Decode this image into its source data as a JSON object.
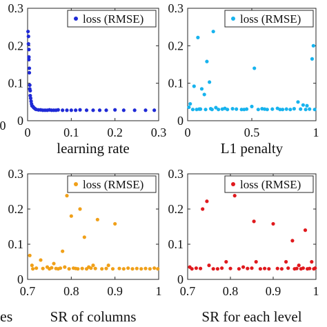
{
  "chart_data": [
    {
      "type": "scatter",
      "xlabel": "learning rate",
      "ylabel": "",
      "xlim": [
        0,
        0.3
      ],
      "ylim": [
        0,
        0.3
      ],
      "xticks": [
        0,
        0.1,
        0.2,
        0.3
      ],
      "yticks": [
        0,
        0.1,
        0.2,
        0.3
      ],
      "xtick_labels": [
        "0",
        "0.1",
        "0.2",
        "0.3"
      ],
      "ytick_labels": [
        "0",
        "0.1",
        "0.2",
        "0.3"
      ],
      "legend_position": "top-right",
      "series": [
        {
          "name": "loss (RMSE)",
          "color": "#1f2ad6",
          "x": [
            0.001,
            0.002,
            0.002,
            0.003,
            0.003,
            0.003,
            0.004,
            0.004,
            0.005,
            0.005,
            0.006,
            0.006,
            0.007,
            0.008,
            0.009,
            0.01,
            0.012,
            0.014,
            0.016,
            0.018,
            0.02,
            0.025,
            0.03,
            0.035,
            0.04,
            0.045,
            0.05,
            0.055,
            0.06,
            0.065,
            0.07,
            0.08,
            0.09,
            0.1,
            0.11,
            0.12,
            0.135,
            0.15,
            0.165,
            0.18,
            0.2,
            0.22,
            0.245,
            0.27,
            0.29
          ],
          "y": [
            0.238,
            0.225,
            0.205,
            0.19,
            0.17,
            0.163,
            0.14,
            0.128,
            0.095,
            0.085,
            0.08,
            0.067,
            0.06,
            0.052,
            0.045,
            0.04,
            0.038,
            0.035,
            0.033,
            0.031,
            0.03,
            0.029,
            0.029,
            0.028,
            0.028,
            0.028,
            0.029,
            0.028,
            0.028,
            0.028,
            0.029,
            0.028,
            0.028,
            0.028,
            0.028,
            0.029,
            0.028,
            0.028,
            0.028,
            0.028,
            0.029,
            0.028,
            0.028,
            0.028,
            0.028
          ]
        }
      ]
    },
    {
      "type": "scatter",
      "xlabel": "L1 penalty",
      "ylabel": "",
      "xlim": [
        0,
        1
      ],
      "ylim": [
        0,
        0.3
      ],
      "xticks": [
        0,
        0.5,
        1
      ],
      "yticks": [
        0,
        0.1,
        0.2,
        0.3
      ],
      "xtick_labels": [
        "0",
        "0.5",
        "1"
      ],
      "ytick_labels": [
        "0",
        "0.1",
        "0.2",
        "0.3"
      ],
      "legend_position": "top-right",
      "series": [
        {
          "name": "loss (RMSE)",
          "color": "#17b3ee",
          "x": [
            0.02,
            0.05,
            0.08,
            0.11,
            0.13,
            0.15,
            0.17,
            0.2,
            0.22,
            0.5,
            0.52,
            0.86,
            0.9,
            0.93,
            0.97,
            0.98,
            0.04,
            0.07,
            0.1,
            0.14,
            0.18,
            0.24,
            0.27,
            0.31,
            0.35,
            0.38,
            0.42,
            0.46,
            0.55,
            0.58,
            0.62,
            0.66,
            0.7,
            0.74,
            0.77,
            0.8,
            0.83,
            0.88,
            0.92,
            0.95,
            0.99,
            0.01,
            0.09,
            0.19,
            0.29,
            0.44,
            0.6,
            0.72
          ],
          "y": [
            0.045,
            0.092,
            0.222,
            0.085,
            0.07,
            0.158,
            0.103,
            0.238,
            0.035,
            0.038,
            0.14,
            0.05,
            0.042,
            0.04,
            0.165,
            0.2,
            0.03,
            0.03,
            0.031,
            0.03,
            0.032,
            0.03,
            0.031,
            0.03,
            0.032,
            0.031,
            0.03,
            0.031,
            0.03,
            0.032,
            0.03,
            0.031,
            0.033,
            0.03,
            0.031,
            0.03,
            0.032,
            0.031,
            0.03,
            0.031,
            0.03,
            0.036,
            0.031,
            0.03,
            0.033,
            0.03,
            0.031,
            0.03
          ]
        }
      ]
    },
    {
      "type": "scatter",
      "xlabel": "SR of columns",
      "ylabel": "",
      "xlim": [
        0.7,
        1
      ],
      "ylim": [
        0,
        0.3
      ],
      "xticks": [
        0.7,
        0.8,
        0.9,
        1
      ],
      "yticks": [
        0,
        0.1,
        0.2,
        0.3
      ],
      "xtick_labels": [
        "0.7",
        "0.8",
        "0.9",
        "1"
      ],
      "ytick_labels": [
        "0",
        "0.1",
        "0.2",
        "0.3"
      ],
      "legend_position": "top-right",
      "series": [
        {
          "name": "loss (RMSE)",
          "color": "#f0a019",
          "x": [
            0.705,
            0.71,
            0.73,
            0.76,
            0.78,
            0.79,
            0.8,
            0.82,
            0.83,
            0.84,
            0.85,
            0.86,
            0.885,
            0.9,
            0.712,
            0.72,
            0.735,
            0.745,
            0.75,
            0.755,
            0.765,
            0.77,
            0.775,
            0.785,
            0.795,
            0.805,
            0.81,
            0.815,
            0.825,
            0.835,
            0.845,
            0.855,
            0.87,
            0.88,
            0.895,
            0.91,
            0.92,
            0.93,
            0.94,
            0.95,
            0.96,
            0.97,
            0.98,
            0.99,
            0.998
          ],
          "y": [
            0.068,
            0.04,
            0.055,
            0.045,
            0.08,
            0.238,
            0.18,
            0.2,
            0.12,
            0.035,
            0.04,
            0.17,
            0.04,
            0.158,
            0.03,
            0.032,
            0.031,
            0.035,
            0.03,
            0.033,
            0.031,
            0.03,
            0.032,
            0.035,
            0.03,
            0.032,
            0.031,
            0.03,
            0.031,
            0.03,
            0.032,
            0.031,
            0.03,
            0.031,
            0.03,
            0.031,
            0.03,
            0.032,
            0.03,
            0.031,
            0.03,
            0.031,
            0.03,
            0.032,
            0.03
          ]
        }
      ]
    },
    {
      "type": "scatter",
      "xlabel": "SR for each level",
      "ylabel": "",
      "xlim": [
        0.7,
        1
      ],
      "ylim": [
        0,
        0.3
      ],
      "xticks": [
        0.7,
        0.8,
        0.9,
        1
      ],
      "yticks": [
        0,
        0.1,
        0.2,
        0.3
      ],
      "xtick_labels": [
        "0.7",
        "0.8",
        "0.9",
        "1"
      ],
      "ytick_labels": [
        "0",
        "0.1",
        "0.2",
        "0.3"
      ],
      "legend_position": "top-right",
      "series": [
        {
          "name": "loss (RMSE)",
          "color": "#e0191d",
          "x": [
            0.705,
            0.735,
            0.745,
            0.76,
            0.79,
            0.81,
            0.83,
            0.855,
            0.86,
            0.9,
            0.93,
            0.945,
            0.96,
            0.975,
            0.99,
            0.71,
            0.72,
            0.73,
            0.75,
            0.77,
            0.78,
            0.8,
            0.82,
            0.84,
            0.85,
            0.87,
            0.88,
            0.89,
            0.91,
            0.92,
            0.935,
            0.95,
            0.955,
            0.965,
            0.97,
            0.98,
            0.985,
            0.995,
            0.998
          ],
          "y": [
            0.035,
            0.2,
            0.222,
            0.03,
            0.05,
            0.238,
            0.035,
            0.165,
            0.05,
            0.158,
            0.05,
            0.11,
            0.04,
            0.14,
            0.05,
            0.03,
            0.032,
            0.031,
            0.04,
            0.03,
            0.032,
            0.031,
            0.03,
            0.031,
            0.032,
            0.03,
            0.031,
            0.03,
            0.031,
            0.03,
            0.032,
            0.03,
            0.031,
            0.03,
            0.032,
            0.03,
            0.031,
            0.03,
            0.032
          ]
        }
      ]
    }
  ],
  "cropped_labels": {
    "bottom_left_zero": "0",
    "row2_left_fragment": "es"
  }
}
